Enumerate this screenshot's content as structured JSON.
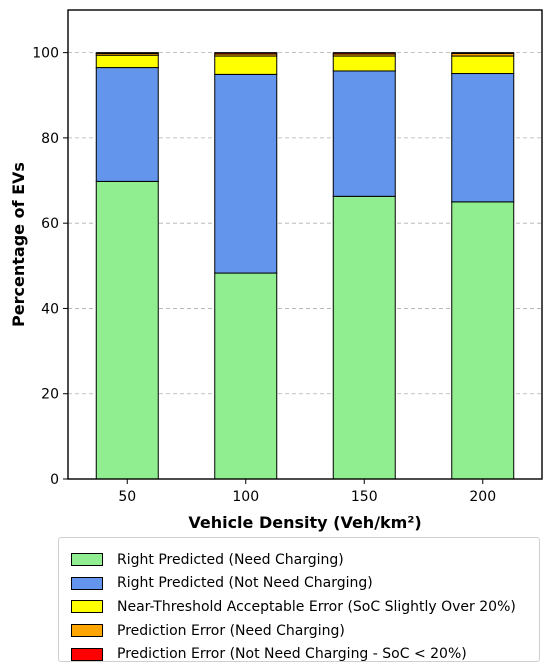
{
  "chart_data": {
    "type": "bar",
    "stacked": true,
    "xlabel": "Vehicle Density (Veh/km²)",
    "ylabel": "Percentage of EVs",
    "ylim": [
      0,
      110
    ],
    "yticks": [
      0,
      20,
      40,
      60,
      80,
      100
    ],
    "grid": "horizontal dashed",
    "legend_position": "bottom",
    "categories": [
      "50",
      "100",
      "150",
      "200"
    ],
    "series": [
      {
        "name": "Right Predicted (Need Charging)",
        "color": "#90ee90",
        "values": [
          69.8,
          48.3,
          66.3,
          65.0
        ]
      },
      {
        "name": "Right Predicted (Not Need Charging)",
        "color": "#6495ed",
        "values": [
          26.7,
          46.6,
          29.4,
          30.1
        ]
      },
      {
        "name": "Near-Threshold Acceptable Error (SoC Slightly Over 20%)",
        "color": "#ffff00",
        "values": [
          2.9,
          4.3,
          3.5,
          4.1
        ]
      },
      {
        "name": "Prediction Error (Need Charging)",
        "color": "#ffa500",
        "values": [
          0.4,
          0.5,
          0.5,
          0.6
        ]
      },
      {
        "name": "Prediction Error (Not Need Charging - SoC < 20%)",
        "color": "#ff0000",
        "values": [
          0.2,
          0.3,
          0.3,
          0.2
        ]
      }
    ]
  }
}
